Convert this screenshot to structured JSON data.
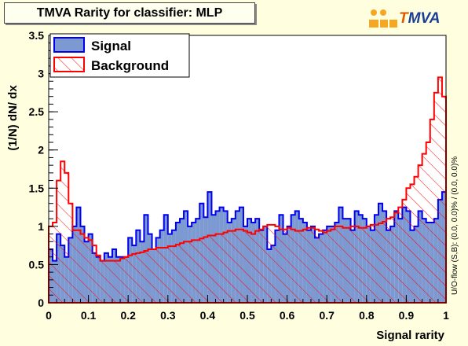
{
  "title": "TMVA Rarity for classifier: MLP",
  "logo": {
    "name": "TMVA",
    "first_letter": "T",
    "rest": "MVA"
  },
  "side_label": "U/O-flow (S,B): (0.0, 0.0)% / (0.0, 0.0)%",
  "colors": {
    "signal_fill": "#7d99d1",
    "signal_line": "#0000ee",
    "background_line": "#ff0000",
    "frame_bg": "#ffffff",
    "page_bg": "#ffffe0"
  },
  "chart_data": {
    "type": "histogram",
    "xlabel": "Signal rarity",
    "ylabel": "(1/N) dN/ dx",
    "xlim": [
      0,
      1
    ],
    "ylim": [
      0,
      3.5
    ],
    "x_ticks": [
      "0",
      "0.1",
      "0.2",
      "0.3",
      "0.4",
      "0.5",
      "0.6",
      "0.7",
      "0.8",
      "0.9",
      "1"
    ],
    "y_ticks": [
      "0",
      "0.5",
      "1",
      "1.5",
      "2",
      "2.5",
      "3",
      "3.5"
    ],
    "legend": {
      "position": "top-left",
      "entries": [
        "Signal",
        "Background"
      ]
    },
    "bin_edges_start": 0.0,
    "bin_width": 0.01,
    "series": [
      {
        "name": "Signal",
        "style": "filled",
        "values": [
          0.7,
          0.55,
          0.9,
          0.75,
          0.6,
          0.85,
          1.0,
          1.25,
          1.0,
          0.8,
          0.9,
          0.65,
          0.6,
          0.55,
          0.65,
          0.6,
          0.7,
          0.6,
          0.6,
          0.6,
          0.85,
          0.75,
          0.95,
          0.8,
          1.15,
          0.9,
          0.7,
          0.85,
          0.95,
          1.15,
          0.9,
          0.95,
          1.05,
          1.1,
          1.2,
          1.0,
          1.05,
          1.1,
          1.3,
          1.12,
          1.45,
          1.15,
          1.2,
          1.25,
          1.2,
          1.05,
          1.1,
          1.2,
          1.25,
          1.0,
          1.1,
          1.05,
          1.1,
          0.95,
          1.0,
          0.7,
          0.75,
          0.95,
          1.15,
          0.9,
          1.0,
          1.15,
          1.2,
          1.1,
          1.05,
          0.95,
          1.0,
          0.85,
          0.9,
          0.95,
          1.0,
          1.0,
          1.05,
          1.25,
          1.1,
          1.1,
          0.95,
          1.2,
          1.15,
          1.1,
          1.0,
          0.95,
          1.15,
          1.3,
          1.2,
          0.95,
          1.0,
          1.2,
          1.1,
          1.25,
          1.2,
          0.95,
          1.0,
          1.2,
          1.1,
          1.05,
          1.05,
          1.1,
          1.35,
          1.45
        ]
      },
      {
        "name": "Background",
        "style": "hatched",
        "values": [
          1.0,
          1.05,
          1.6,
          1.85,
          1.7,
          1.3,
          0.95,
          0.95,
          0.9,
          0.85,
          0.82,
          0.75,
          0.62,
          0.55,
          0.55,
          0.55,
          0.55,
          0.55,
          0.58,
          0.6,
          0.62,
          0.64,
          0.65,
          0.66,
          0.68,
          0.7,
          0.7,
          0.72,
          0.72,
          0.72,
          0.74,
          0.74,
          0.76,
          0.78,
          0.8,
          0.8,
          0.82,
          0.82,
          0.84,
          0.86,
          0.88,
          0.88,
          0.9,
          0.9,
          0.92,
          0.94,
          0.94,
          0.96,
          0.96,
          0.94,
          0.92,
          0.9,
          0.94,
          0.96,
          1.0,
          1.02,
          1.02,
          1.0,
          0.96,
          0.96,
          0.98,
          0.96,
          0.94,
          0.94,
          0.96,
          0.98,
          0.98,
          0.96,
          0.94,
          0.92,
          0.94,
          0.96,
          1.0,
          1.0,
          0.98,
          0.98,
          1.0,
          1.0,
          0.98,
          0.98,
          1.0,
          1.02,
          1.02,
          1.04,
          1.06,
          1.1,
          1.12,
          1.18,
          1.25,
          1.35,
          1.5,
          1.55,
          1.65,
          1.8,
          1.95,
          2.1,
          2.4,
          2.75,
          2.95,
          2.7
        ]
      }
    ]
  }
}
